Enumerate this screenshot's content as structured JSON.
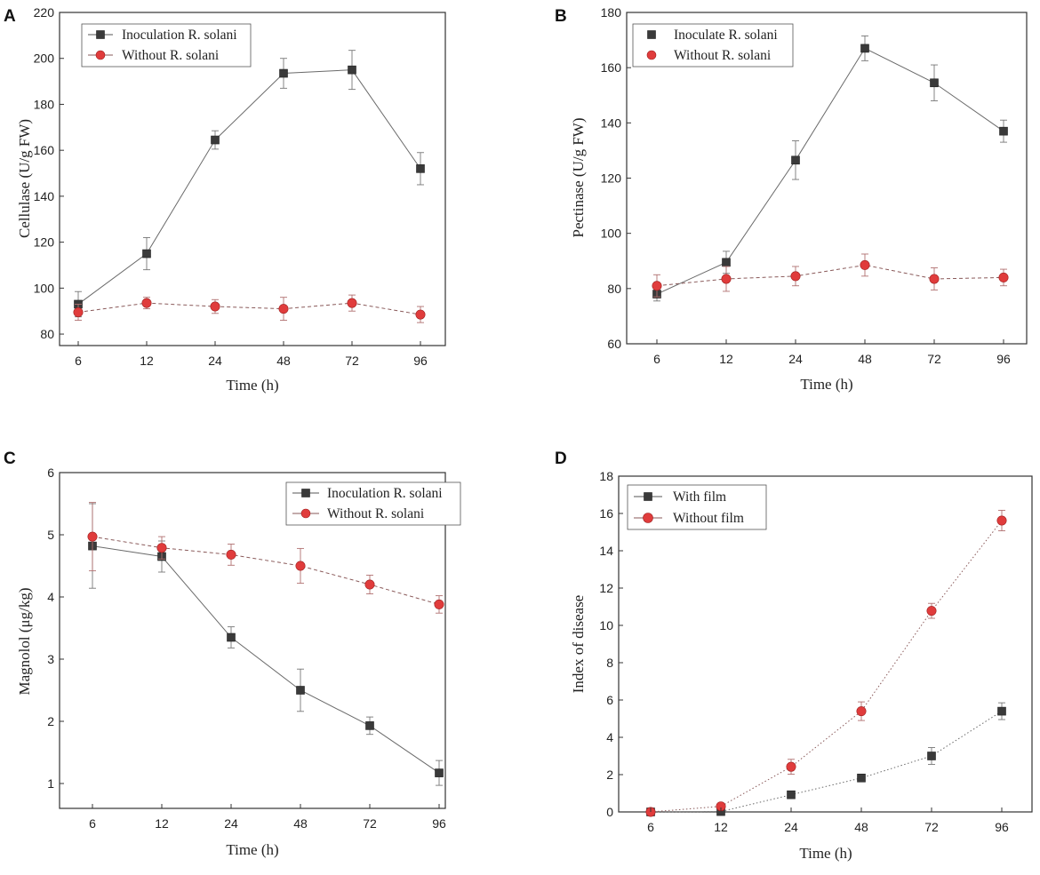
{
  "colors": {
    "series_square": "#3a3a3a",
    "series_circle": "#e03c3c",
    "axis": "#333333"
  },
  "chart_data": [
    {
      "panel": "A",
      "type": "line",
      "title": "",
      "xlabel": "Time (h)",
      "ylabel": "Cellulase (U/g FW)",
      "categories": [
        "6",
        "12",
        "24",
        "48",
        "72",
        "96"
      ],
      "ylim": [
        75,
        220
      ],
      "yticks": [
        80,
        100,
        120,
        140,
        160,
        180,
        200,
        220
      ],
      "legend_position": "top-left",
      "series": [
        {
          "name": "Inoculation R. solani",
          "marker": "square",
          "line": "solid",
          "legend_line": true,
          "values": [
            93,
            115,
            164.5,
            193.5,
            195,
            152
          ],
          "errors": [
            5.5,
            7,
            4,
            6.5,
            8.5,
            7
          ]
        },
        {
          "name": "Without R. solani",
          "marker": "circle",
          "line": "dashed",
          "legend_line": true,
          "values": [
            89.5,
            93.5,
            92,
            91,
            93.5,
            88.5
          ],
          "errors": [
            3.5,
            2.5,
            3,
            5,
            3.5,
            3.5
          ]
        }
      ]
    },
    {
      "panel": "B",
      "type": "line",
      "title": "",
      "xlabel": "Time (h)",
      "ylabel": "Pectinase (U/g FW)",
      "categories": [
        "6",
        "12",
        "24",
        "48",
        "72",
        "96"
      ],
      "ylim": [
        60,
        180
      ],
      "yticks": [
        60,
        80,
        100,
        120,
        140,
        160,
        180
      ],
      "legend_position": "top-left",
      "series": [
        {
          "name": "Inoculate R. solani",
          "marker": "square",
          "line": "solid",
          "legend_line": false,
          "values": [
            78,
            89.5,
            126.5,
            167,
            154.5,
            137
          ],
          "errors": [
            2.5,
            4,
            7,
            4.5,
            6.5,
            4
          ]
        },
        {
          "name": "Without R. solani",
          "marker": "circle",
          "line": "dashed",
          "legend_line": false,
          "values": [
            81,
            83.5,
            84.5,
            88.5,
            83.5,
            84
          ],
          "errors": [
            4,
            4.5,
            3.5,
            4,
            4,
            3
          ]
        }
      ]
    },
    {
      "panel": "C",
      "type": "line",
      "title": "",
      "xlabel": "Time (h)",
      "ylabel": "Magnolol (μg/kg)",
      "categories": [
        "6",
        "12",
        "24",
        "48",
        "72",
        "96"
      ],
      "ylim": [
        0.6,
        6
      ],
      "yticks": [
        1,
        2,
        3,
        4,
        5,
        6
      ],
      "legend_position": "top-right",
      "series": [
        {
          "name": "Inoculation R. solani",
          "marker": "square",
          "line": "solid",
          "legend_line": true,
          "values": [
            4.82,
            4.65,
            3.35,
            2.5,
            1.93,
            1.17
          ],
          "errors": [
            0.68,
            0.25,
            0.17,
            0.34,
            0.14,
            0.2
          ]
        },
        {
          "name": "Without R. solani",
          "marker": "circle",
          "line": "dashed",
          "legend_line": true,
          "values": [
            4.97,
            4.79,
            4.68,
            4.5,
            4.2,
            3.88
          ],
          "errors": [
            0.55,
            0.18,
            0.17,
            0.28,
            0.15,
            0.14
          ]
        }
      ]
    },
    {
      "panel": "D",
      "type": "line",
      "title": "",
      "xlabel": "Time (h)",
      "ylabel": "Index of disease",
      "categories": [
        "6",
        "12",
        "24",
        "48",
        "72",
        "96"
      ],
      "ylim": [
        0,
        18
      ],
      "yticks": [
        0,
        2,
        4,
        6,
        8,
        10,
        12,
        14,
        16,
        18
      ],
      "legend_position": "top-left",
      "series": [
        {
          "name": "With film",
          "marker": "square",
          "line": "dotted",
          "legend_line": true,
          "values": [
            0,
            0.02,
            0.92,
            1.82,
            3.0,
            5.4
          ],
          "errors": [
            0.05,
            0.05,
            0.1,
            0.2,
            0.45,
            0.45
          ]
        },
        {
          "name": "Without film",
          "marker": "circle",
          "line": "dotted",
          "legend_line": true,
          "values": [
            0,
            0.3,
            2.42,
            5.4,
            10.78,
            15.62
          ],
          "errors": [
            0.05,
            0.1,
            0.4,
            0.5,
            0.4,
            0.55
          ]
        }
      ]
    }
  ]
}
